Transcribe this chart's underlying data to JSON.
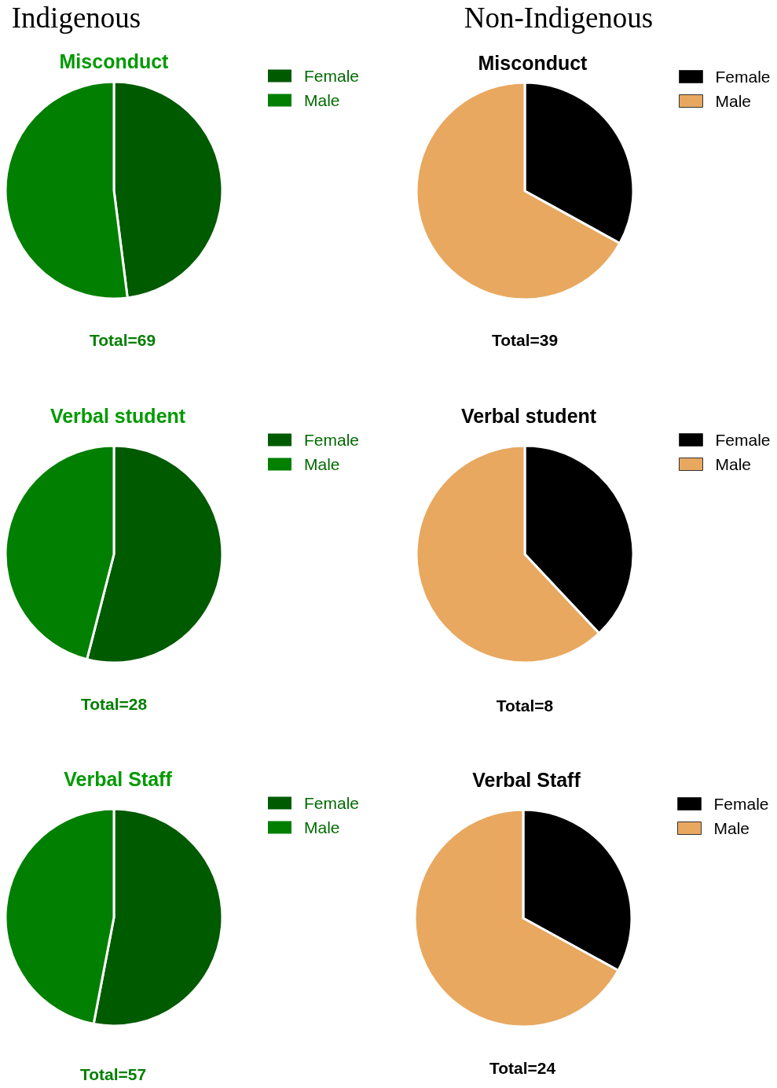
{
  "chart_data": [
    {
      "type": "pie",
      "title": "Misconduct",
      "categories": [
        "Female",
        "Male"
      ],
      "values": [
        48,
        52
      ],
      "colors": [
        "#005a00",
        "#007f00"
      ],
      "legend": "top right",
      "annotations": [
        "Indigenous",
        "Total=69"
      ]
    },
    {
      "type": "pie",
      "title": "Misconduct",
      "categories": [
        "Female",
        "Male"
      ],
      "values": [
        33,
        67
      ],
      "colors": [
        "#000000",
        "#e8a860"
      ],
      "legend": "top right",
      "annotations": [
        "Non-Indigenous",
        "Total=39"
      ]
    },
    {
      "type": "pie",
      "title": "Verbal student",
      "categories": [
        "Female",
        "Male"
      ],
      "values": [
        54,
        46
      ],
      "colors": [
        "#005a00",
        "#007f00"
      ],
      "legend": "top right",
      "annotations": [
        "Total=28"
      ]
    },
    {
      "type": "pie",
      "title": "Verbal student",
      "categories": [
        "Female",
        "Male"
      ],
      "values": [
        38,
        62
      ],
      "colors": [
        "#000000",
        "#e8a860"
      ],
      "legend": "top right",
      "annotations": [
        "Total=8"
      ]
    },
    {
      "type": "pie",
      "title": "Verbal Staff",
      "categories": [
        "Female",
        "Male"
      ],
      "values": [
        53,
        47
      ],
      "colors": [
        "#005a00",
        "#007f00"
      ],
      "legend": "top right",
      "annotations": [
        "Total=57"
      ]
    },
    {
      "type": "pie",
      "title": "Verbal Staff",
      "categories": [
        "Female",
        "Male"
      ],
      "values": [
        33,
        67
      ],
      "colors": [
        "#000000",
        "#e8a860"
      ],
      "legend": "top right",
      "annotations": [
        "Total=24"
      ]
    }
  ]
}
